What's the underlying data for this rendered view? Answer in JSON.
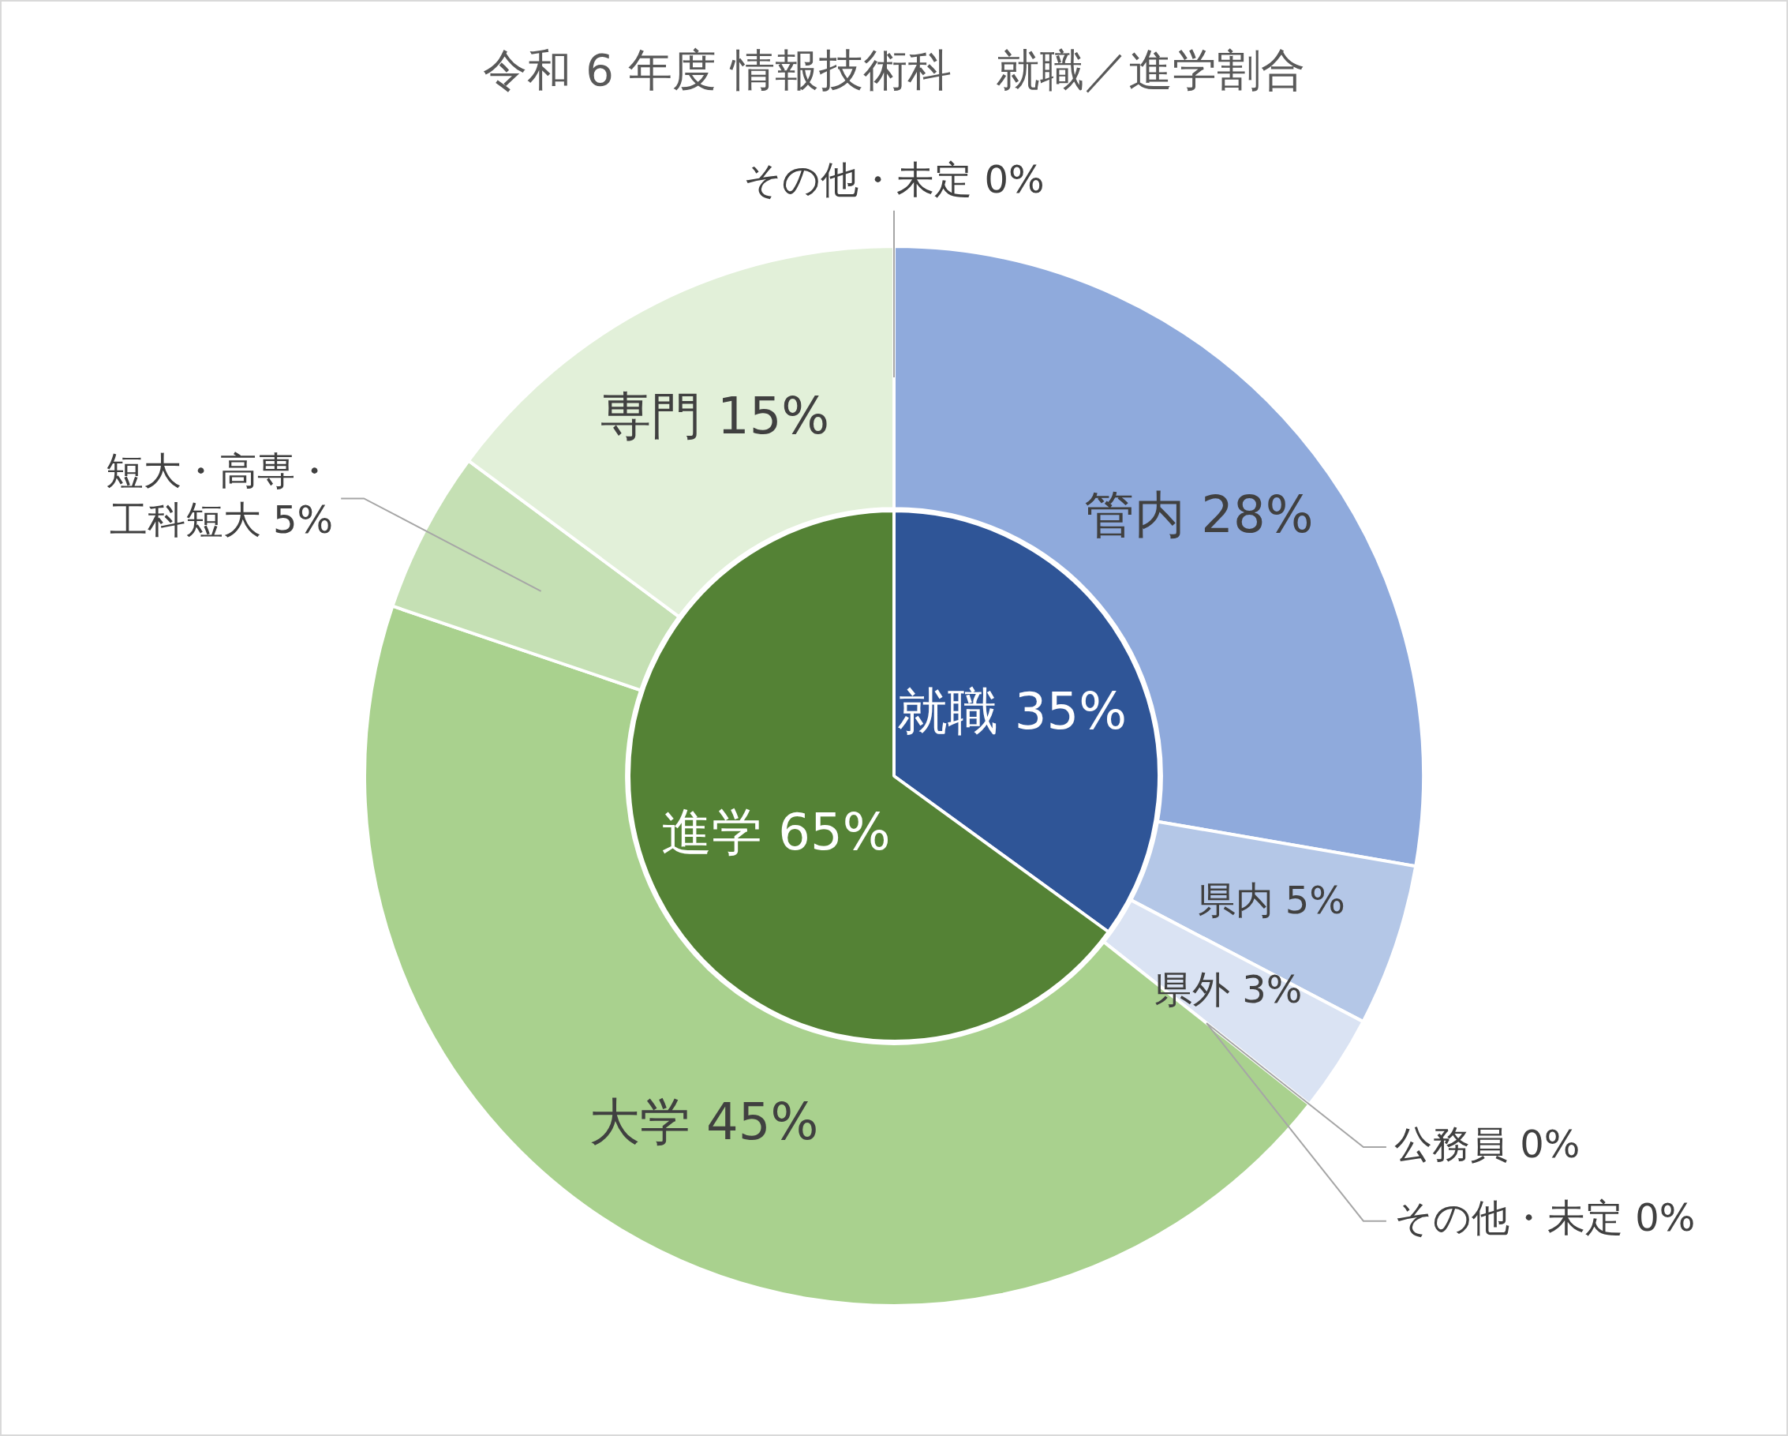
{
  "chart_data": [
    {
      "type": "donut",
      "title": "令和 6 年度 情報技術科　就職／進学割合",
      "categories": [
        "管内",
        "県内",
        "県外",
        "公務員",
        "その他・未定",
        "大学",
        "短大・高専・工科短大",
        "専門",
        "その他・未定"
      ],
      "values": [
        28,
        5,
        3,
        0,
        0,
        45,
        5,
        15,
        0
      ],
      "value_labels": [
        "28%",
        "5%",
        "3%",
        "0%",
        "0%",
        "45%",
        "5%",
        "15%",
        "0%"
      ],
      "colors": [
        "#8faadc",
        "#b4c7e7",
        "#dae3f3",
        "#dae3f3",
        "#dae3f3",
        "#a9d18e",
        "#c5e0b4",
        "#e2f0d9",
        "#e2f0d9"
      ]
    },
    {
      "type": "pie",
      "categories": [
        "就職",
        "進学"
      ],
      "values": [
        35,
        65
      ],
      "value_labels": [
        "35%",
        "65%"
      ],
      "colors": [
        "#2f5597",
        "#548235"
      ]
    }
  ]
}
